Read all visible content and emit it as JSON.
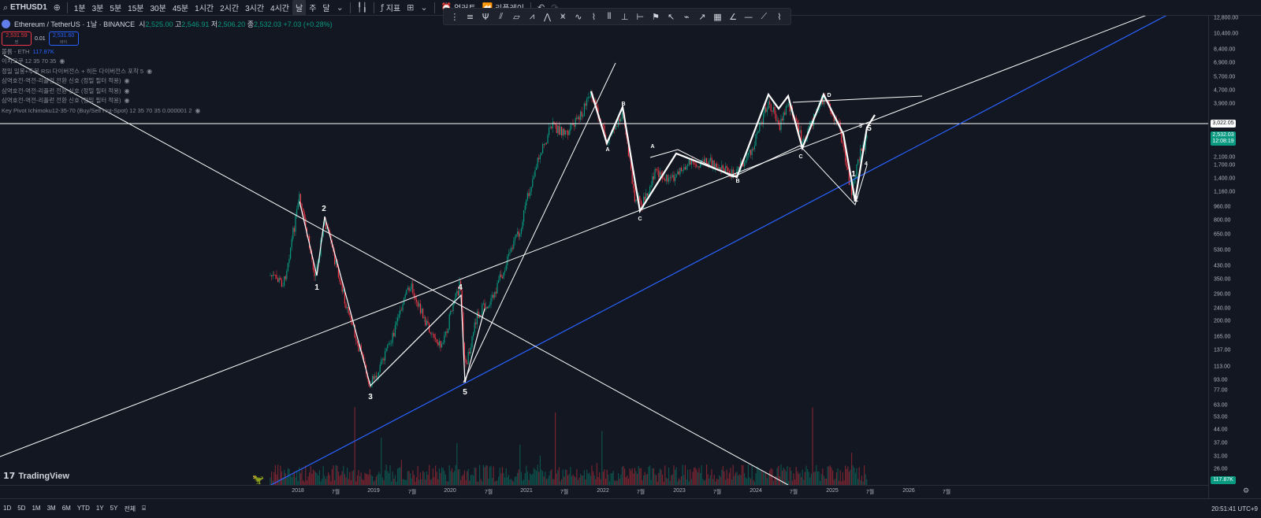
{
  "toolbar": {
    "symbol": "ETHUSD1",
    "intervals": [
      "1분",
      "3분",
      "5분",
      "15분",
      "30분",
      "45분",
      "1시간",
      "2시간",
      "3시간",
      "4시간",
      "날",
      "주",
      "달"
    ],
    "active_interval": "날",
    "indicators_label": "지표",
    "alert_label": "얼러트",
    "replay_label": "리플레이"
  },
  "legend": {
    "title": "Ethereum / TetherUS · 1날 · BINANCE",
    "open_k": "시",
    "open": "2,525.00",
    "high_k": "고",
    "high": "2,546.91",
    "low_k": "저",
    "low": "2,506.20",
    "close_k": "종",
    "close": "2,532.03",
    "change": "+7.03 (+0.28%)",
    "sell_price": "2,531.59",
    "sell_label": "팜",
    "spread": "0.01",
    "buy_price": "2,531.60",
    "buy_label": "바이",
    "indicators": [
      {
        "name": "볼륨 - ETH",
        "value": "117.87K",
        "eye": false
      },
      {
        "name": "이치모쿠 12 35 70 35",
        "value": "",
        "eye": true
      },
      {
        "name": "정밀 일봉+주봉 RSI 다이버전스 + 히든 다이버전스 포착 5",
        "value": "",
        "eye": true
      },
      {
        "name": "삼역호전-역전-리플런 전환 신호 (정밀 필터 적용)",
        "value": "",
        "eye": true
      },
      {
        "name": "삼역호전-역전-리플런 전환 신호 (정밀 필터 적용)",
        "value": "",
        "eye": true
      },
      {
        "name": "삼역호전-역전-리플런 전환 신호 (정밀 필터 적용)",
        "value": "",
        "eye": true
      },
      {
        "name": "Key Pivot Ichimoku12-35-70 (Buy/Sell Hot-Spot) 12 35 70 35 0.000001 2",
        "value": "",
        "eye": true
      }
    ]
  },
  "price_scale": {
    "labels": [
      "12,800.00",
      "10,400.00",
      "8,400.00",
      "6,900.00",
      "5,700.00",
      "4,700.00",
      "3,900.00",
      "2,100.00",
      "1,700.00",
      "1,400.00",
      "1,160.00",
      "960.00",
      "800.00",
      "650.00",
      "530.00",
      "430.00",
      "350.00",
      "290.00",
      "240.00",
      "200.00",
      "165.00",
      "137.00",
      "113.00",
      "93.00",
      "77.00",
      "63.00",
      "53.00",
      "44.00",
      "37.00",
      "31.00",
      "26.00"
    ],
    "hline_price": "3,022.05",
    "current_price": "2,532.03",
    "countdown": "12:08:19",
    "volume_tag": "117.87K"
  },
  "time_scale": {
    "labels": [
      "2018",
      "7월",
      "2019",
      "7월",
      "2020",
      "7월",
      "2021",
      "7월",
      "2022",
      "7월",
      "2023",
      "7월",
      "2024",
      "7월",
      "2025",
      "7월",
      "2026",
      "7월"
    ]
  },
  "bottom": {
    "ranges": [
      "1D",
      "5D",
      "1M",
      "3M",
      "6M",
      "YTD",
      "1Y",
      "5Y",
      "전체"
    ],
    "clock": "20:51:41 UTC+9"
  },
  "watermark": "TradingView",
  "wave_labels": [
    "1",
    "2",
    "3",
    "4",
    "5",
    "A",
    "B",
    "C",
    "A",
    "B",
    "C",
    "D",
    "1",
    "2",
    "3",
    "4",
    "5"
  ],
  "colors": {
    "background": "#131722",
    "up": "#089981",
    "down": "#f23645",
    "trendline": "#ffffff",
    "support_line": "#2962ff"
  }
}
